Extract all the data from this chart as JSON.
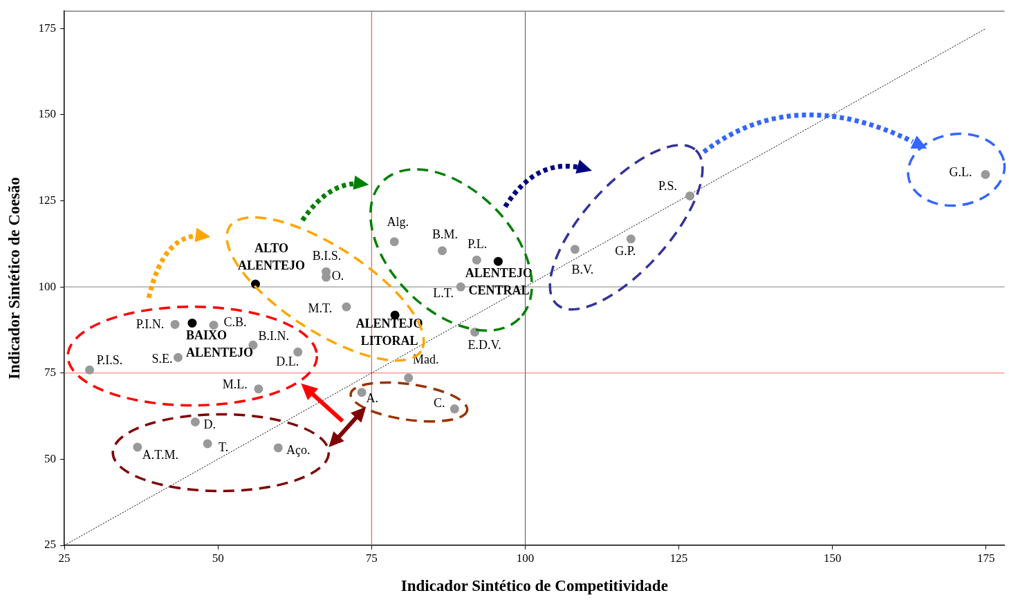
{
  "chart_data": {
    "type": "scatter",
    "xlabel": "Indicador Sintético de Competitividade",
    "ylabel": "Indicador Sintético de Coesão",
    "xlim": [
      25,
      178
    ],
    "ylim": [
      25,
      180
    ],
    "xticks": [
      25,
      50,
      75,
      100,
      125,
      150,
      175
    ],
    "yticks": [
      25,
      50,
      75,
      100,
      125,
      150,
      175
    ],
    "grid": false,
    "legend": false,
    "marker": "circle",
    "series": [
      {
        "color": "#999999",
        "x": [
          29.1,
          36.9,
          46.3,
          48.3,
          59.8,
          56.6,
          43.5,
          43.0,
          49.3,
          55.7,
          63.0,
          67.6,
          67.6,
          70.9,
          78.7,
          86.5,
          92.1,
          89.5,
          91.8,
          81.0,
          73.4,
          88.5,
          108.1,
          117.2,
          126.8,
          174.9
        ],
        "values": [
          75.9,
          53.5,
          60.8,
          54.5,
          53.3,
          70.4,
          79.5,
          89.1,
          88.9,
          83.1,
          81.1,
          104.4,
          102.8,
          94.2,
          113.1,
          110.5,
          107.8,
          100.0,
          86.9,
          73.6,
          69.4,
          64.6,
          110.9,
          113.9,
          126.4,
          132.6
        ]
      },
      {
        "color": "#000000",
        "x": [
          56.1,
          45.8,
          78.8,
          95.6
        ],
        "values": [
          100.8,
          89.5,
          91.8,
          107.4
        ]
      },
      {
        "type": "line",
        "color": "#000000",
        "line_style": "dotted",
        "marker": "none",
        "x": [
          25,
          175
        ],
        "values": [
          25,
          175
        ]
      }
    ],
    "ref_lines": [
      {
        "axis": "y",
        "value": 100,
        "color": "#808080"
      },
      {
        "axis": "x",
        "value": 100,
        "color": "#555555"
      },
      {
        "axis": "x",
        "value": 75,
        "color": "#ff3333"
      },
      {
        "axis": "y",
        "value": 75,
        "color": "#ff6666"
      }
    ],
    "annotations": [
      {
        "text": "P.I.S.",
        "x": 29.1,
        "y": 75.9
      },
      {
        "text": "A.T.M.",
        "x": 36.9,
        "y": 53.5
      },
      {
        "text": "D.",
        "x": 46.3,
        "y": 60.8
      },
      {
        "text": "T.",
        "x": 48.3,
        "y": 54.5
      },
      {
        "text": "Aço.",
        "x": 59.8,
        "y": 53.3
      },
      {
        "text": "M.L.",
        "x": 56.6,
        "y": 70.4
      },
      {
        "text": "S.E.",
        "x": 43.5,
        "y": 79.5
      },
      {
        "text": "P.I.N.",
        "x": 43.0,
        "y": 89.1
      },
      {
        "text": "C.B.",
        "x": 49.3,
        "y": 88.9
      },
      {
        "text": "B.I.N.",
        "x": 55.7,
        "y": 83.1
      },
      {
        "text": "D.L.",
        "x": 63.0,
        "y": 81.1
      },
      {
        "text": "B.I.S.",
        "x": 67.6,
        "y": 104.4
      },
      {
        "text": "O.",
        "x": 67.6,
        "y": 102.8
      },
      {
        "text": "M.T.",
        "x": 70.9,
        "y": 94.2
      },
      {
        "text": "Alg.",
        "x": 78.7,
        "y": 113.1
      },
      {
        "text": "B.M.",
        "x": 86.5,
        "y": 110.5
      },
      {
        "text": "P.L.",
        "x": 92.1,
        "y": 107.8
      },
      {
        "text": "L.T.",
        "x": 89.5,
        "y": 100.0
      },
      {
        "text": "E.D.V.",
        "x": 91.8,
        "y": 86.9
      },
      {
        "text": "Mad.",
        "x": 81.0,
        "y": 73.6
      },
      {
        "text": "A.",
        "x": 73.4,
        "y": 69.4
      },
      {
        "text": "C.",
        "x": 88.5,
        "y": 64.6
      },
      {
        "text": "B.V.",
        "x": 108.1,
        "y": 110.9
      },
      {
        "text": "G.P.",
        "x": 117.2,
        "y": 113.9
      },
      {
        "text": "P.S.",
        "x": 126.8,
        "y": 126.4
      },
      {
        "text": "G.L.",
        "x": 174.9,
        "y": 132.6
      },
      {
        "text": "ALTO ALENTEJO",
        "x": 56.1,
        "y": 100.8
      },
      {
        "text": "BAIXO ALENTEJO",
        "x": 45.8,
        "y": 89.5
      },
      {
        "text": "ALENTEJO LITORAL",
        "x": 78.8,
        "y": 91.8
      },
      {
        "text": "ALENTEJO CENTRAL",
        "x": 95.6,
        "y": 107.4
      }
    ]
  }
}
